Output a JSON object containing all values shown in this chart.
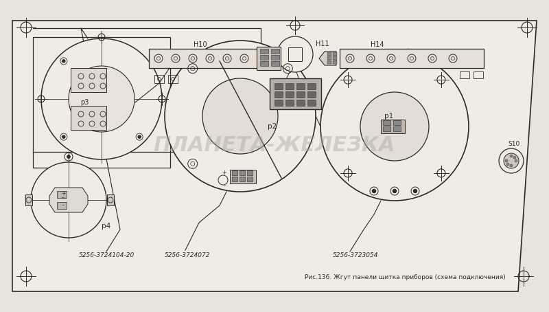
{
  "title": "Рис.136. Жгут панели щитка приборов (схема подключения)",
  "bg_color": "#e8e4dc",
  "panel_color": "#f0ece4",
  "line_color": "#2a2a2a",
  "label_p4": "р4",
  "label_p3": "р3",
  "label_p2": "р2",
  "label_p1": "р1",
  "label_h10": "Н10",
  "label_h11": "Н11",
  "label_h14": "Н14",
  "label_s10": "S10",
  "label_ref1": "5256-3724104-20",
  "label_ref2": "5256-3724072",
  "label_ref3": "5256-3723054",
  "watermark": "ПЛАНЕТА-ЖЕЛЕЗКА"
}
